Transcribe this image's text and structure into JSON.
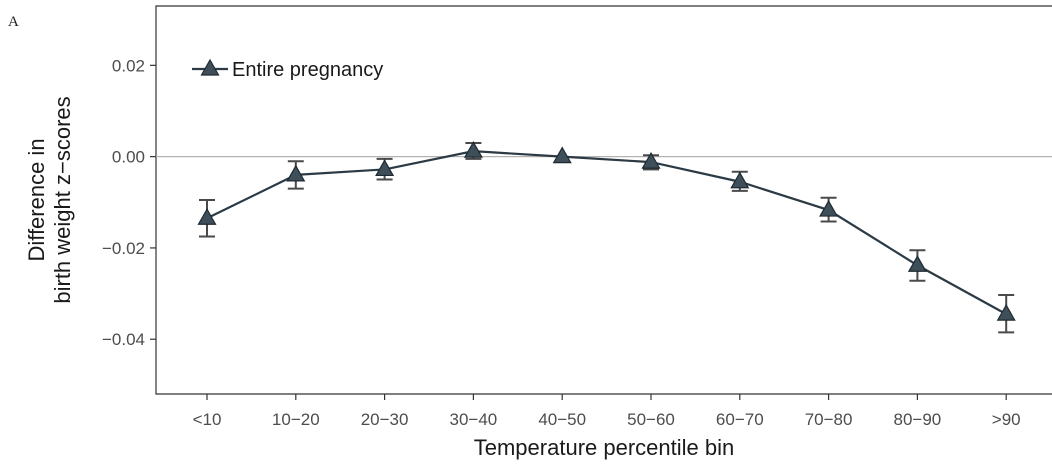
{
  "panel_label": "A",
  "colors": {
    "series_line": "#2b3a44",
    "marker_fill": "#3f4f5a",
    "error_bar": "#4a4a4a",
    "reference_line": "#b3b3b3",
    "axis": "#333333"
  },
  "chart_data": {
    "type": "line",
    "xlabel": "Temperature percentile bin",
    "ylabel_lines": [
      "Difference in",
      "birth weight z−scores"
    ],
    "categories": [
      "<10",
      "10−20",
      "20−30",
      "30−40",
      "40−50",
      "50−60",
      "60−70",
      "70−80",
      "80−90",
      ">90"
    ],
    "ylim": [
      -0.052,
      0.033
    ],
    "yticks": [
      0.02,
      0.0,
      -0.02,
      -0.04
    ],
    "ytick_labels": [
      "0.02",
      "0.00",
      "−0.02",
      "−0.04"
    ],
    "reference_line_y": 0.0,
    "grid": false,
    "legend_position": "top-left",
    "series": [
      {
        "name": "Entire pregnancy",
        "marker": "triangle",
        "values": [
          -0.0135,
          -0.004,
          -0.0028,
          0.0012,
          0.0,
          -0.0012,
          -0.0055,
          -0.0117,
          -0.0238,
          -0.0345
        ],
        "lower": [
          -0.0175,
          -0.007,
          -0.005,
          -0.0005,
          0.0,
          -0.0028,
          -0.0075,
          -0.0142,
          -0.0272,
          -0.0385
        ],
        "upper": [
          -0.0095,
          -0.001,
          -0.0005,
          0.003,
          0.0,
          0.0003,
          -0.0033,
          -0.009,
          -0.0205,
          -0.0303
        ]
      }
    ]
  }
}
